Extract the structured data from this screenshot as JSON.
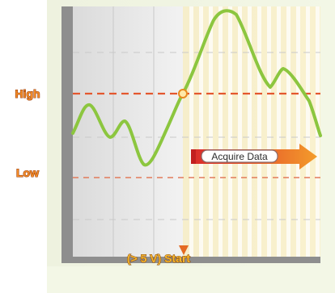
{
  "labels": {
    "high": "High",
    "low": "Low",
    "acquire": "Acquire Data",
    "start": "(> 5 V) Start"
  },
  "colors": {
    "panel_bg": "#f4f7e9",
    "plot_bg": "#e9e9e9",
    "axis_frame": "#8e8e8e",
    "grid": "#c9c9c9",
    "signal": "#8cc63f",
    "threshold_line": "#e4572e",
    "trigger_line": "#e8892b",
    "acquisition_band": "#f7e9a6",
    "label_orange": "#f28c28",
    "label_stroke": "#9b3c0c",
    "arrow_red": "#d92b2b",
    "arrow_orange": "#f39c2b",
    "start_label": "#f5b62d"
  },
  "icons": {
    "trigger_marker": "circle",
    "start_arrow": "arrow-down",
    "acquire_arrow": "arrow-right"
  }
}
